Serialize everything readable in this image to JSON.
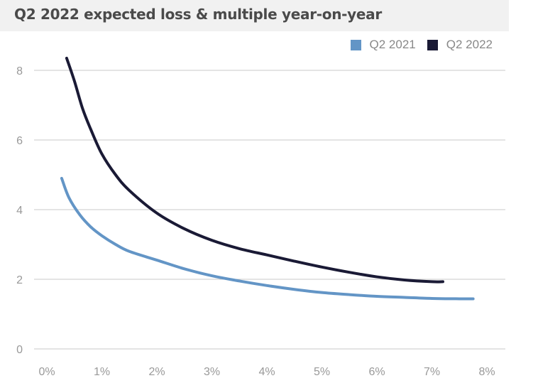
{
  "title": "Q2 2022 expected loss & multiple year-on-year",
  "chart_data": {
    "type": "line",
    "title": "Q2 2022 expected loss & multiple year-on-year",
    "xlabel": "",
    "ylabel": "",
    "xlim": [
      0,
      8
    ],
    "ylim": [
      0,
      8.5
    ],
    "x_ticks": [
      "0%",
      "1%",
      "2%",
      "3%",
      "4%",
      "5%",
      "6%",
      "7%",
      "8%"
    ],
    "y_ticks": [
      "0",
      "2",
      "4",
      "6",
      "8"
    ],
    "grid": "horizontal",
    "legend_position": "top-right",
    "series": [
      {
        "name": "Q2 2021",
        "color": "#6395c6",
        "x": [
          0.27,
          0.4,
          0.6,
          0.8,
          1.0,
          1.25,
          1.5,
          2.0,
          2.5,
          3.0,
          3.5,
          4.0,
          4.5,
          5.0,
          5.5,
          6.0,
          6.5,
          7.0,
          7.5,
          7.75
        ],
        "y": [
          4.9,
          4.35,
          3.85,
          3.5,
          3.25,
          3.0,
          2.8,
          2.55,
          2.3,
          2.1,
          1.95,
          1.82,
          1.71,
          1.62,
          1.56,
          1.51,
          1.48,
          1.45,
          1.44,
          1.44
        ]
      },
      {
        "name": "Q2 2022",
        "color": "#1a1a35",
        "x": [
          0.36,
          0.5,
          0.65,
          0.8,
          1.0,
          1.25,
          1.5,
          2.0,
          2.5,
          3.0,
          3.5,
          4.0,
          4.5,
          5.0,
          5.5,
          6.0,
          6.5,
          7.0,
          7.2
        ],
        "y": [
          8.35,
          7.7,
          6.9,
          6.3,
          5.6,
          5.0,
          4.55,
          3.9,
          3.45,
          3.12,
          2.88,
          2.7,
          2.52,
          2.35,
          2.2,
          2.07,
          1.98,
          1.93,
          1.93
        ]
      }
    ]
  }
}
